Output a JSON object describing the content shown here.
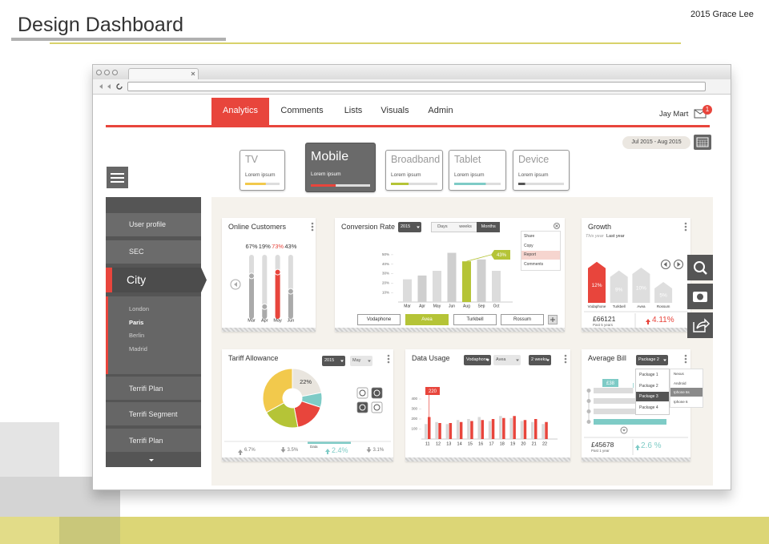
{
  "header": {
    "title": "Design Dashboard",
    "author": "2015 Grace Lee"
  },
  "nav": {
    "tabs": [
      "Analytics",
      "Comments",
      "Lists",
      "Visuals",
      "Admin"
    ],
    "active": 0,
    "user": "Jay Mart",
    "badge": "1"
  },
  "date_range": "Jul 2015 - Aug 2015",
  "devices": [
    {
      "name": "TV",
      "label": "Lorem ipsum",
      "progress": 60,
      "color": "#f2c94c"
    },
    {
      "name": "Mobile",
      "label": "Lorem ipsum",
      "progress": 42,
      "color": "#e8453c"
    },
    {
      "name": "Broadband",
      "label": "Lorem ipsum",
      "progress": 38,
      "color": "#b5c437"
    },
    {
      "name": "Tablet",
      "label": "Lorem ipsum",
      "progress": 68,
      "color": "#7ecbc6"
    },
    {
      "name": "Device",
      "label": "Lorem ipsum",
      "progress": 15,
      "color": "#555555"
    }
  ],
  "active_device": 1,
  "sidebar": {
    "items": [
      "User profile",
      "SEC"
    ],
    "active": "City",
    "cities": [
      "London",
      "Paris",
      "Berlin",
      "Madrid"
    ],
    "selected_city": 1,
    "more": [
      "Terrifi Plan",
      "Terrifi Segment",
      "Terrifi Plan"
    ]
  },
  "online_customers": {
    "title": "Online Customers",
    "categories": [
      "Mar",
      "Apr",
      "May",
      "Jun"
    ],
    "values": [
      67,
      19,
      73,
      43
    ],
    "value_labels": [
      "67%",
      "19%",
      "73%",
      "43%"
    ],
    "highlight": 2
  },
  "conversion_rate": {
    "title": "Conversion Rate",
    "year": "2015",
    "periods": [
      "Days",
      "weeks",
      "Months"
    ],
    "active_period": 2,
    "categories": [
      "Mar",
      "Apr",
      "May",
      "Jun",
      "Aug",
      "Sep",
      "Oct"
    ],
    "values": [
      24,
      28,
      33,
      52,
      43,
      45,
      33
    ],
    "value_labels": [
      null,
      null,
      null,
      null,
      "43%",
      null,
      null
    ],
    "highlight": 4,
    "ylim": [
      0,
      55
    ],
    "yticks": [
      {
        "value": 10,
        "label": "10%"
      },
      {
        "value": 20,
        "label": "20%"
      },
      {
        "value": 30,
        "label": "30%"
      },
      {
        "value": 40,
        "label": "40%"
      },
      {
        "value": 50,
        "label": "50%"
      }
    ],
    "menu": [
      "Share",
      "Copy",
      "Report",
      "Comments"
    ],
    "active_menu": 2,
    "operators": [
      "Vodaphone",
      "Avea",
      "Turkbell",
      "Rossum"
    ],
    "active_operator": 1
  },
  "growth": {
    "title": "Growth",
    "periods": [
      "This year",
      "Last year"
    ],
    "categories": [
      "Vodaphone",
      "Turkbell",
      "Avea",
      "Rossum"
    ],
    "values": [
      12,
      9,
      10,
      5
    ],
    "value_labels": [
      "12%",
      "9%",
      "10%",
      "5%"
    ],
    "highlight": 0,
    "total": "£66121",
    "total_note": "Past 5 years",
    "change": "4.11%"
  },
  "tariff": {
    "title": "Tariff Allowance",
    "year": "2015",
    "month": "May",
    "slices": [
      {
        "value": 22,
        "label": "22%",
        "color": "#e9e5de"
      },
      {
        "value": 8,
        "color": "#7ecbc6"
      },
      {
        "value": 17,
        "color": "#e8453c"
      },
      {
        "value": 20,
        "color": "#b5c437"
      },
      {
        "value": 33,
        "color": "#f2c94c"
      }
    ],
    "stats": [
      {
        "label": "6.7%",
        "dir": "up"
      },
      {
        "label": "3.5%",
        "dir": "down"
      },
      {
        "caption": "Data",
        "label": "2.4%",
        "dir": "up",
        "active": true
      },
      {
        "label": "3.1%",
        "dir": "down"
      }
    ]
  },
  "data_usage": {
    "title": "Data Usage",
    "filters": [
      "Vodaphone",
      "Avea",
      "2 weeks"
    ],
    "categories": [
      "11",
      "12",
      "13",
      "14",
      "15",
      "16",
      "17",
      "18",
      "19",
      "20",
      "21",
      "22"
    ],
    "ylim": [
      0,
      400
    ],
    "yticks": [
      100,
      200,
      300,
      400
    ],
    "series": [
      {
        "color": "#d9d9d9",
        "values": [
          150,
          170,
          150,
          190,
          200,
          220,
          180,
          230,
          210,
          180,
          170,
          150
        ]
      },
      {
        "color": "#e8453c",
        "values": [
          220,
          160,
          160,
          170,
          180,
          190,
          200,
          210,
          230,
          190,
          200,
          170
        ],
        "value_labels": [
          "220",
          null,
          null,
          null,
          null,
          null,
          null,
          null,
          null,
          null,
          null,
          null
        ]
      }
    ]
  },
  "average_bill": {
    "title": "Average Bill",
    "package": "Package 2",
    "packages": [
      "Package 1",
      "Package 2",
      "Package 3",
      "Package 4"
    ],
    "active_package": 2,
    "devices": [
      "Nexus",
      "Android",
      "Iphone 6s",
      "Iphone 6"
    ],
    "active_device": 2,
    "values": [
      38,
      45,
      52,
      70
    ],
    "value_labels": [
      "£38",
      null,
      null,
      null
    ],
    "highlight": 3,
    "total": "£45678",
    "total_note": "Past 1 year",
    "change": "2.6 %"
  }
}
